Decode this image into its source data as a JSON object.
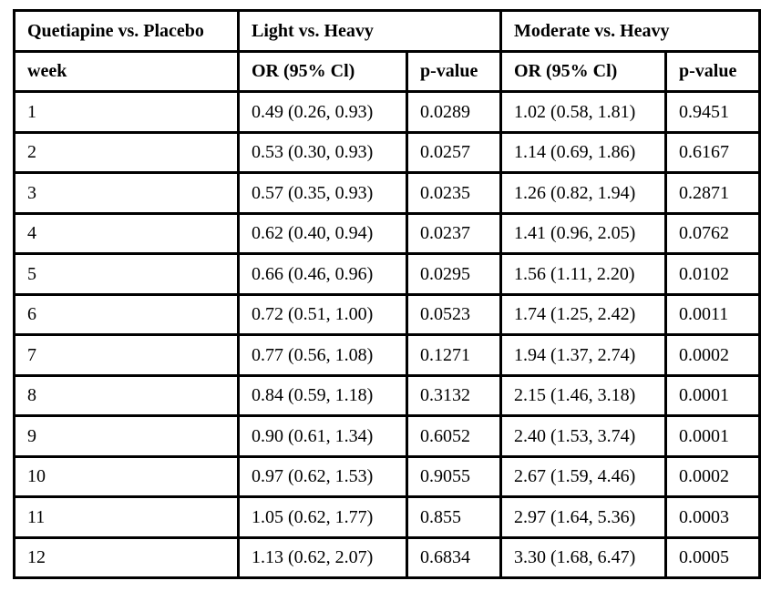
{
  "table": {
    "group_headers": [
      {
        "label": "Quetiapine vs. Placebo",
        "colspan": 1
      },
      {
        "label": "Light vs. Heavy",
        "colspan": 2
      },
      {
        "label": "Moderate vs. Heavy",
        "colspan": 2
      }
    ],
    "column_headers": [
      "week",
      "OR (95% Cl)",
      "p-value",
      "OR (95% Cl)",
      "p-value"
    ],
    "rows": [
      [
        "1",
        "0.49 (0.26, 0.93)",
        "0.0289",
        "1.02 (0.58, 1.81)",
        "0.9451"
      ],
      [
        "2",
        "0.53 (0.30, 0.93)",
        "0.0257",
        "1.14 (0.69, 1.86)",
        "0.6167"
      ],
      [
        "3",
        "0.57 (0.35, 0.93)",
        "0.0235",
        "1.26 (0.82, 1.94)",
        "0.2871"
      ],
      [
        "4",
        "0.62 (0.40, 0.94)",
        "0.0237",
        "1.41 (0.96, 2.05)",
        "0.0762"
      ],
      [
        "5",
        "0.66 (0.46, 0.96)",
        "0.0295",
        "1.56 (1.11, 2.20)",
        "0.0102"
      ],
      [
        "6",
        "0.72 (0.51, 1.00)",
        "0.0523",
        "1.74 (1.25, 2.42)",
        "0.0011"
      ],
      [
        "7",
        "0.77 (0.56, 1.08)",
        "0.1271",
        "1.94 (1.37, 2.74)",
        "0.0002"
      ],
      [
        "8",
        "0.84 (0.59, 1.18)",
        "0.3132",
        "2.15 (1.46, 3.18)",
        "0.0001"
      ],
      [
        "9",
        "0.90 (0.61, 1.34)",
        "0.6052",
        "2.40 (1.53, 3.74)",
        "0.0001"
      ],
      [
        "10",
        "0.97 (0.62, 1.53)",
        "0.9055",
        "2.67 (1.59, 4.46)",
        "0.0002"
      ],
      [
        "11",
        "1.05 (0.62, 1.77)",
        "0.855",
        "2.97 (1.64, 5.36)",
        "0.0003"
      ],
      [
        "12",
        "1.13 (0.62, 2.07)",
        "0.6834",
        "3.30 (1.68, 6.47)",
        "0.0005"
      ]
    ],
    "column_cell_names": [
      "week-cell",
      "or-ci-light-cell",
      "p-value-light-cell",
      "or-ci-moderate-cell",
      "p-value-moderate-cell"
    ]
  },
  "colors": {
    "border": "#000000",
    "background": "#ffffff",
    "text": "#000000"
  }
}
